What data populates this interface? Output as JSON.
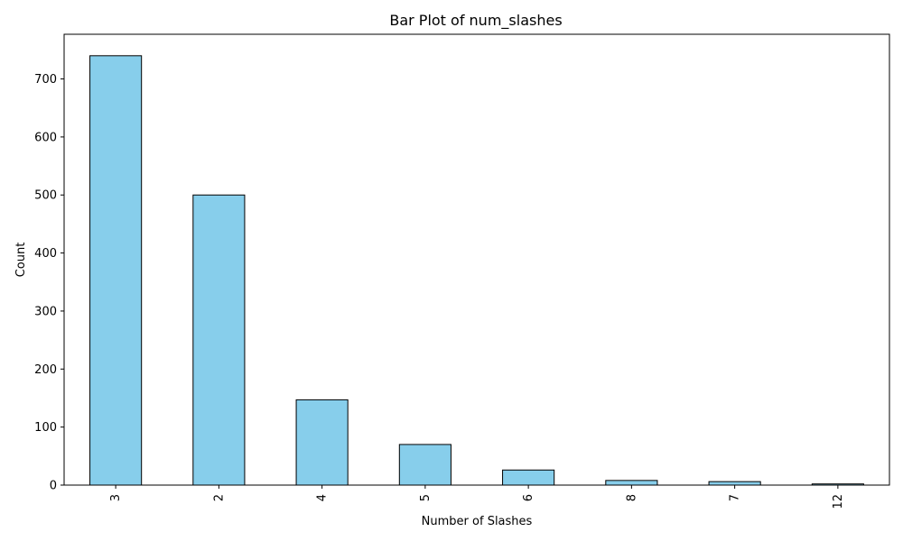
{
  "chart_data": {
    "type": "bar",
    "title": "Bar Plot of num_slashes",
    "xlabel": "Number of Slashes",
    "ylabel": "Count",
    "categories": [
      "3",
      "2",
      "4",
      "5",
      "6",
      "8",
      "7",
      "12"
    ],
    "values": [
      740,
      500,
      147,
      70,
      26,
      8,
      6,
      2
    ],
    "ylim": [
      0,
      777
    ],
    "yticks": [
      0,
      100,
      200,
      300,
      400,
      500,
      600,
      700
    ],
    "grid": false,
    "legend": "none",
    "colors": {
      "bar_fill": "#87ceeb",
      "bar_edge": "#000000",
      "axis": "#000000"
    }
  }
}
